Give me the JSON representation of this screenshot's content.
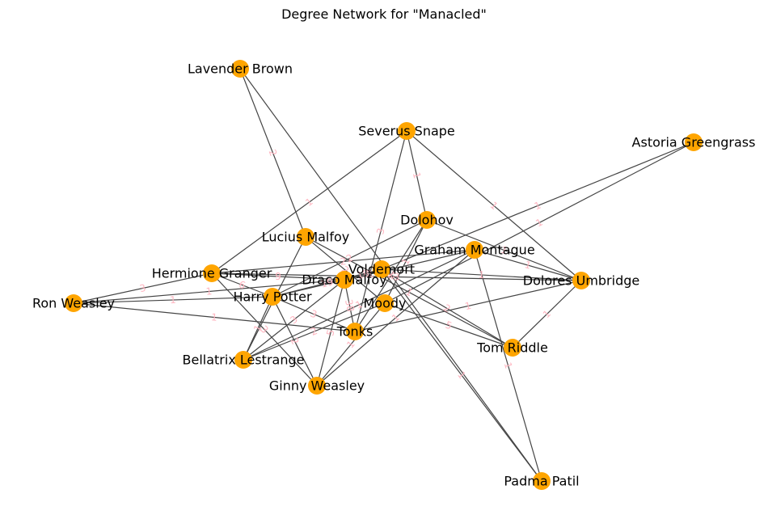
{
  "title": "Degree Network for \"Manacled\"",
  "colors": {
    "node": "#ffa500",
    "edge": "#444444",
    "edge_label": "#ffb6c1",
    "text": "#000000"
  },
  "nodes": [
    {
      "id": "lavender",
      "label": "Lavender Brown"
    },
    {
      "id": "snape",
      "label": "Severus Snape"
    },
    {
      "id": "astoria",
      "label": "Astoria Greengrass"
    },
    {
      "id": "dolohov",
      "label": "Dolohov"
    },
    {
      "id": "lucius",
      "label": "Lucius Malfoy"
    },
    {
      "id": "montague",
      "label": "Graham Montague"
    },
    {
      "id": "hermione",
      "label": "Hermione Granger"
    },
    {
      "id": "voldemort",
      "label": "Voldemort"
    },
    {
      "id": "draco",
      "label": "Draco Malfoy"
    },
    {
      "id": "umbridge",
      "label": "Dolores Umbridge"
    },
    {
      "id": "ron",
      "label": "Ron Weasley"
    },
    {
      "id": "harry",
      "label": "Harry Potter"
    },
    {
      "id": "moody",
      "label": "Moody"
    },
    {
      "id": "tonks",
      "label": "Tonks"
    },
    {
      "id": "riddle",
      "label": "Tom Riddle"
    },
    {
      "id": "bellatrix",
      "label": "Bellatrix Lestrange"
    },
    {
      "id": "ginny",
      "label": "Ginny Weasley"
    },
    {
      "id": "padma",
      "label": "Padma Patil"
    }
  ],
  "edges": [
    {
      "source": "lavender",
      "target": "lucius",
      "weight": "2"
    },
    {
      "source": "lavender",
      "target": "padma",
      "weight": "1"
    },
    {
      "source": "snape",
      "target": "hermione",
      "weight": "1"
    },
    {
      "source": "snape",
      "target": "tonks",
      "weight": "3"
    },
    {
      "source": "snape",
      "target": "dolohov",
      "weight": "1"
    },
    {
      "source": "snape",
      "target": "umbridge",
      "weight": "1"
    },
    {
      "source": "astoria",
      "target": "voldemort",
      "weight": "1"
    },
    {
      "source": "astoria",
      "target": "moody",
      "weight": "1"
    },
    {
      "source": "dolohov",
      "target": "moody",
      "weight": "1"
    },
    {
      "source": "dolohov",
      "target": "umbridge",
      "weight": "1"
    },
    {
      "source": "dolohov",
      "target": "harry",
      "weight": "2"
    },
    {
      "source": "dolohov",
      "target": "tonks",
      "weight": "2"
    },
    {
      "source": "lucius",
      "target": "moody",
      "weight": "2"
    },
    {
      "source": "lucius",
      "target": "riddle",
      "weight": "1"
    },
    {
      "source": "lucius",
      "target": "bellatrix",
      "weight": "1"
    },
    {
      "source": "montague",
      "target": "umbridge",
      "weight": "1"
    },
    {
      "source": "montague",
      "target": "bellatrix",
      "weight": "1"
    },
    {
      "source": "montague",
      "target": "ginny",
      "weight": "1"
    },
    {
      "source": "montague",
      "target": "harry",
      "weight": "14"
    },
    {
      "source": "montague",
      "target": "hermione",
      "weight": "2"
    },
    {
      "source": "hermione",
      "target": "ron",
      "weight": "3"
    },
    {
      "source": "hermione",
      "target": "draco",
      "weight": "9"
    },
    {
      "source": "hermione",
      "target": "harry",
      "weight": "6"
    },
    {
      "source": "hermione",
      "target": "ginny",
      "weight": "3"
    },
    {
      "source": "hermione",
      "target": "umbridge",
      "weight": "3"
    },
    {
      "source": "ron",
      "target": "harry",
      "weight": "1"
    },
    {
      "source": "ron",
      "target": "tonks",
      "weight": "1"
    },
    {
      "source": "ron",
      "target": "draco",
      "weight": "1"
    },
    {
      "source": "voldemort",
      "target": "umbridge",
      "weight": "1"
    },
    {
      "source": "voldemort",
      "target": "harry",
      "weight": "19"
    },
    {
      "source": "voldemort",
      "target": "draco",
      "weight": "18"
    },
    {
      "source": "voldemort",
      "target": "padma",
      "weight": "1"
    },
    {
      "source": "voldemort",
      "target": "riddle",
      "weight": "2"
    },
    {
      "source": "draco",
      "target": "tonks",
      "weight": "38"
    },
    {
      "source": "draco",
      "target": "bellatrix",
      "weight": "3"
    },
    {
      "source": "draco",
      "target": "ginny",
      "weight": "5"
    },
    {
      "source": "harry",
      "target": "tonks",
      "weight": "3"
    },
    {
      "source": "harry",
      "target": "bellatrix",
      "weight": "1"
    },
    {
      "source": "harry",
      "target": "ginny",
      "weight": "2"
    },
    {
      "source": "moody",
      "target": "bellatrix",
      "weight": "2"
    },
    {
      "source": "moody",
      "target": "ginny",
      "weight": "1"
    },
    {
      "source": "moody",
      "target": "riddle",
      "weight": "5"
    },
    {
      "source": "tonks",
      "target": "umbridge",
      "weight": "1"
    },
    {
      "source": "umbridge",
      "target": "riddle",
      "weight": "1"
    },
    {
      "source": "montague",
      "target": "padma",
      "weight": "1"
    }
  ]
}
